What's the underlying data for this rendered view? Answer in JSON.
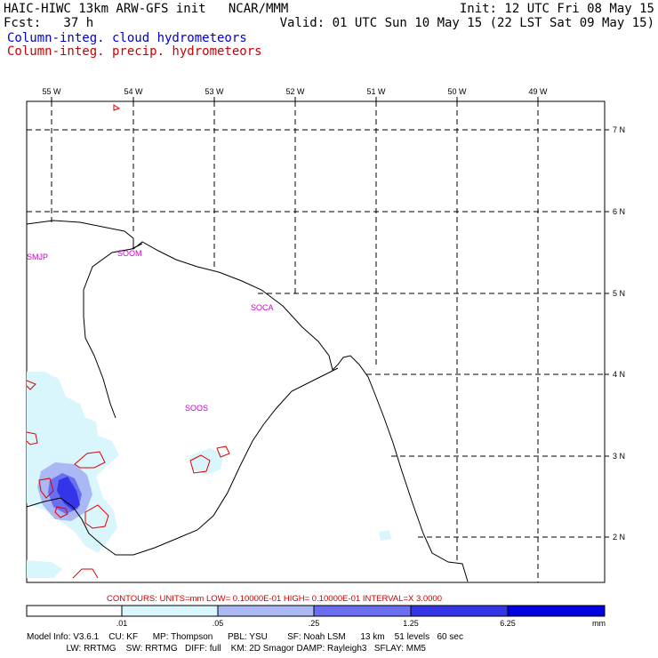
{
  "header": {
    "left_line1": "HAIC-HIWC 13km ARW-GFS init   NCAR/MMM",
    "left_line2": "Fcst:   37 h",
    "right_line1": "Init: 12 UTC Fri 08 May 15",
    "right_line2": "Valid: 01 UTC Sun 10 May 15 (22 LST Sat 09 May 15)",
    "field_cloud": "Column-integ. cloud hydrometeors",
    "field_precip": "Column-integ. precip. hydrometeors"
  },
  "map": {
    "lon_labels": [
      "55 W",
      "54 W",
      "53 W",
      "52 W",
      "51 W",
      "50 W",
      "49 W"
    ],
    "lat_labels": [
      "7 N",
      "6 N",
      "5 N",
      "4 N",
      "3 N",
      "2 N"
    ],
    "stations": [
      "SMJP",
      "SOOM",
      "SOCA",
      "SOOS"
    ]
  },
  "contour_info": "CONTOURS:  UNITS=mm   LOW= 0.10000E-01   HIGH= 0.10000E-01   INTERVAL=X   3.0000",
  "colorbar": {
    "ticks": [
      ".01",
      ".05",
      ".25",
      "1.25",
      "6.25"
    ],
    "unit": "mm",
    "colors": [
      "#ffffff",
      "#d8f6fb",
      "#aab8f4",
      "#6a6ef0",
      "#3434e8",
      "#0000e0"
    ]
  },
  "footer": {
    "line1": "Model Info: V3.6.1    CU: KF      MP: Thompson      PBL: YSU        SF: Noah LSM      13 km    51 levels   60 sec",
    "line2": "                LW: RRTMG    SW: RRTMG   DIFF: full    KM: 2D Smagor DAMP: Rayleigh3   SFLAY: MM5"
  }
}
